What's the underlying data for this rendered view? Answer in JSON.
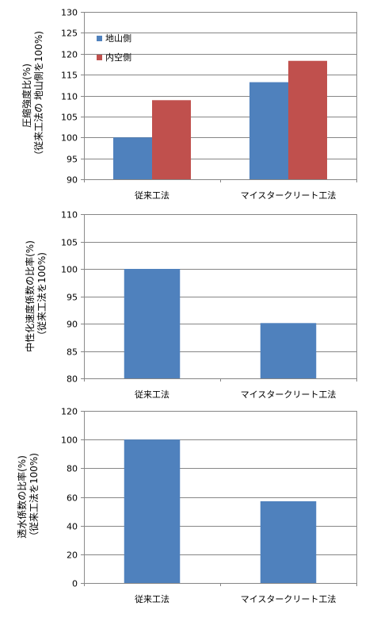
{
  "chart_data": [
    {
      "type": "bar",
      "categories": [
        "従来工法",
        "マイスタークリート工法"
      ],
      "series": [
        {
          "name": "地山側",
          "values": [
            100,
            113.2
          ],
          "color": "#4F81BD"
        },
        {
          "name": "内空側",
          "values": [
            108.9,
            118.3
          ],
          "color": "#C0504D"
        }
      ],
      "ylabel_lines": [
        "圧縮強度比(%)",
        "（従来工法の 地山側を100%)"
      ],
      "ylim": [
        90,
        130
      ],
      "yticks": [
        90,
        95,
        100,
        105,
        110,
        115,
        120,
        125,
        130
      ],
      "grid": true,
      "legend": "top-left"
    },
    {
      "type": "bar",
      "categories": [
        "従来工法",
        "マイスタークリート工法"
      ],
      "series": [
        {
          "values": [
            100,
            90.1
          ],
          "color": "#4F81BD"
        }
      ],
      "ylabel_lines": [
        "中性化速度係数の比率(%)",
        "（従来工法を100%)"
      ],
      "ylim": [
        80,
        110
      ],
      "yticks": [
        80,
        85,
        90,
        95,
        100,
        105,
        110
      ],
      "grid": true
    },
    {
      "type": "bar",
      "categories": [
        "従来工法",
        "マイスタークリート工法"
      ],
      "series": [
        {
          "values": [
            100,
            57
          ],
          "color": "#4F81BD"
        }
      ],
      "ylabel_lines": [
        "透水係数の比率(%)",
        "（従来工法を100%)"
      ],
      "ylim": [
        0,
        120
      ],
      "yticks": [
        0,
        20,
        40,
        60,
        80,
        100,
        120
      ],
      "grid": true
    }
  ]
}
